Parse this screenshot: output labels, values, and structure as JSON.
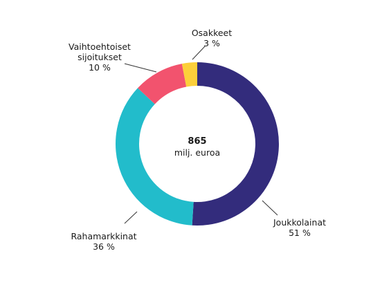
{
  "chart_data": {
    "type": "pie",
    "style": "donut",
    "center": {
      "total": "865",
      "unit": "milj. euroa"
    },
    "slices": [
      {
        "name": "Joukkolainat",
        "value": 51,
        "value_label": "51 %",
        "color": "#332c7c"
      },
      {
        "name": "Rahamarkkinat",
        "value": 36,
        "value_label": "36 %",
        "color": "#22bccb"
      },
      {
        "name": "Vaihtoehtoiset sijoitukset",
        "name_lines": [
          "Vaihtoehtoiset",
          "sijoitukset"
        ],
        "value": 10,
        "value_label": "10 %",
        "color": "#f2536e"
      },
      {
        "name": "Osakkeet",
        "value": 3,
        "value_label": "3 %",
        "color": "#fccf3a"
      }
    ],
    "legend": "none"
  }
}
